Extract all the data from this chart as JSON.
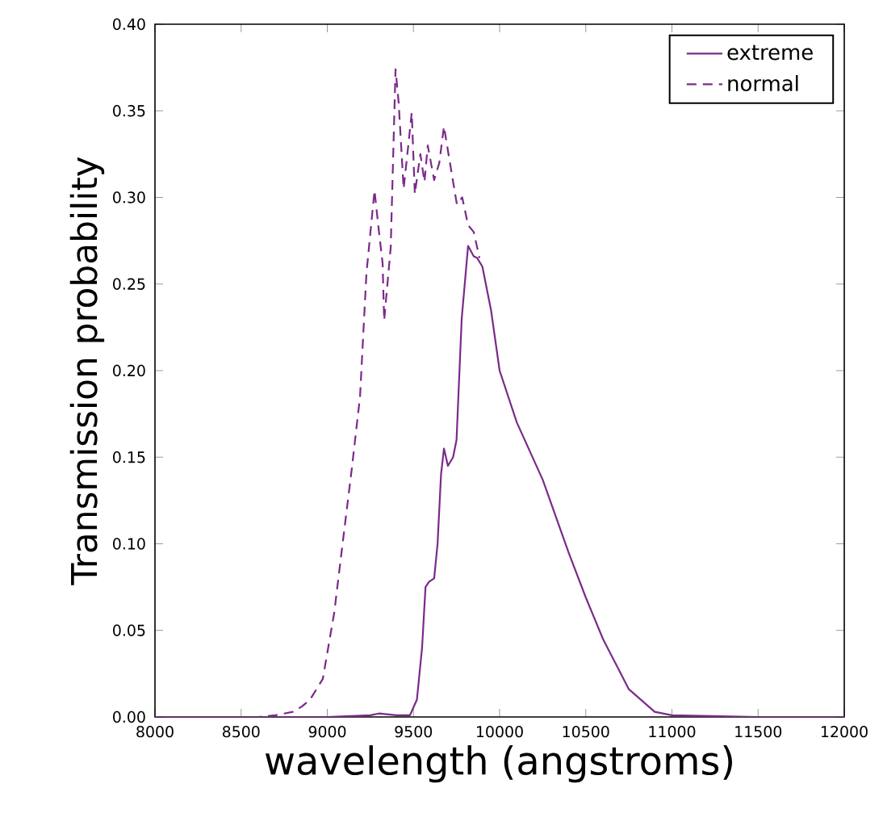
{
  "chart_data": {
    "type": "line",
    "xlabel": "wavelength (angstroms)",
    "ylabel": "Transmission probability",
    "xlim": [
      8000,
      12000
    ],
    "ylim": [
      0,
      0.4
    ],
    "xticks": [
      8000,
      8500,
      9000,
      9500,
      10000,
      10500,
      11000,
      11500,
      12000
    ],
    "yticks": [
      {
        "value": 0,
        "label": "0.00"
      },
      {
        "value": 0.05,
        "label": "0.05"
      },
      {
        "value": 0.1,
        "label": "0.10"
      },
      {
        "value": 0.15,
        "label": "0.15"
      },
      {
        "value": 0.2,
        "label": "0.20"
      },
      {
        "value": 0.25,
        "label": "0.25"
      },
      {
        "value": 0.3,
        "label": "0.30"
      },
      {
        "value": 0.35,
        "label": "0.35"
      },
      {
        "value": 0.4,
        "label": "0.40"
      }
    ],
    "legend": "top right",
    "grid": false,
    "marker": "none",
    "series": [
      {
        "name": "extreme",
        "color": "#7b2a8a",
        "line_style": "solid",
        "x": [
          8000,
          8500,
          9000,
          9250,
          9300,
          9400,
          9480,
          9520,
          9550,
          9570,
          9590,
          9620,
          9640,
          9660,
          9677,
          9700,
          9730,
          9750,
          9780,
          9817,
          9850,
          9870,
          9900,
          9950,
          10000,
          10100,
          10250,
          10400,
          10500,
          10600,
          10750,
          10900,
          11000,
          11500,
          12000
        ],
        "values": [
          0,
          0,
          0,
          0.001,
          0.002,
          0.001,
          0.001,
          0.01,
          0.04,
          0.075,
          0.078,
          0.08,
          0.1,
          0.14,
          0.155,
          0.145,
          0.15,
          0.16,
          0.23,
          0.272,
          0.266,
          0.265,
          0.26,
          0.235,
          0.2,
          0.17,
          0.137,
          0.095,
          0.069,
          0.045,
          0.016,
          0.003,
          0.001,
          0,
          0
        ]
      },
      {
        "name": "normal",
        "color": "#7b2a8a",
        "line_style": "dashed",
        "x": [
          8000,
          8600,
          8700,
          8750,
          8800,
          8852,
          8900,
          8974,
          9040,
          9096,
          9143,
          9190,
          9227,
          9274,
          9300,
          9321,
          9330,
          9368,
          9396,
          9414,
          9443,
          9470,
          9490,
          9508,
          9540,
          9564,
          9583,
          9620,
          9650,
          9677,
          9705,
          9752,
          9783,
          9817,
          9850,
          9883
        ],
        "values": [
          0,
          0,
          0.001,
          0.002,
          0.003,
          0.006,
          0.01,
          0.022,
          0.06,
          0.106,
          0.144,
          0.185,
          0.256,
          0.304,
          0.28,
          0.262,
          0.229,
          0.271,
          0.374,
          0.355,
          0.305,
          0.33,
          0.349,
          0.302,
          0.325,
          0.309,
          0.33,
          0.31,
          0.32,
          0.341,
          0.324,
          0.296,
          0.3,
          0.284,
          0.28,
          0.265
        ]
      }
    ]
  }
}
